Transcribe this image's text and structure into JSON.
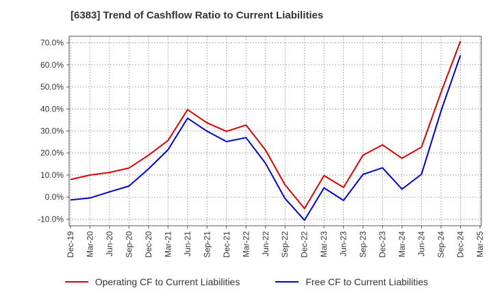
{
  "title": "[6383]  Trend of Cashflow Ratio to Current Liabilities",
  "colors": {
    "operating": "#dd0000",
    "free": "#0000cc",
    "grid": "#999999",
    "frame": "#555555"
  },
  "chart_data": {
    "type": "line",
    "title": "[6383]  Trend of Cashflow Ratio to Current Liabilities",
    "xlabel": "",
    "ylabel": "",
    "ylim": [
      -13,
      73
    ],
    "grid": true,
    "legend_position": "bottom",
    "x_tick_labels": [
      "Dec-19",
      "Mar-20",
      "Jun-20",
      "Sep-20",
      "Dec-20",
      "Mar-21",
      "Jun-21",
      "Sep-21",
      "Dec-21",
      "Mar-22",
      "Jun-22",
      "Sep-22",
      "Dec-22",
      "Mar-23",
      "Jun-23",
      "Sep-23",
      "Dec-23",
      "Mar-24",
      "Jun-24",
      "Sep-24",
      "Dec-24",
      "Mar-25"
    ],
    "y_ticks": [
      -10,
      0,
      10,
      20,
      30,
      40,
      50,
      60,
      70
    ],
    "y_tick_labels": [
      "-10.0%",
      "0.0%",
      "10.0%",
      "20.0%",
      "30.0%",
      "40.0%",
      "50.0%",
      "60.0%",
      "70.0%"
    ],
    "categories": [
      "Dec-19",
      "Mar-20",
      "Jun-20",
      "Sep-20",
      "Dec-20",
      "Mar-21",
      "Jun-21",
      "Sep-21",
      "Dec-21",
      "Mar-22",
      "Jun-22",
      "Sep-22",
      "Dec-22",
      "Mar-23",
      "Jun-23",
      "Sep-23",
      "Dec-23",
      "Mar-24",
      "Jun-24",
      "Sep-24",
      "Dec-24"
    ],
    "series": [
      {
        "name": "Operating CF to Current Liabilities",
        "color": "#dd0000",
        "values": [
          8.0,
          10.0,
          11.2,
          13.2,
          19.0,
          25.7,
          39.7,
          33.7,
          29.8,
          32.7,
          21.3,
          5.6,
          -5.2,
          9.8,
          4.4,
          19.0,
          23.7,
          17.6,
          22.7,
          47.5,
          70.8
        ]
      },
      {
        "name": "Free CF to Current Liabilities",
        "color": "#0000cc",
        "values": [
          -1.3,
          -0.4,
          2.4,
          5.0,
          12.8,
          21.5,
          35.8,
          29.9,
          25.2,
          27.0,
          15.3,
          -0.6,
          -10.5,
          4.2,
          -1.5,
          10.3,
          13.3,
          3.6,
          10.4,
          39.0,
          64.4
        ]
      }
    ]
  },
  "legend": {
    "operating_label": "Operating CF to Current Liabilities",
    "free_label": "Free CF to Current Liabilities"
  }
}
